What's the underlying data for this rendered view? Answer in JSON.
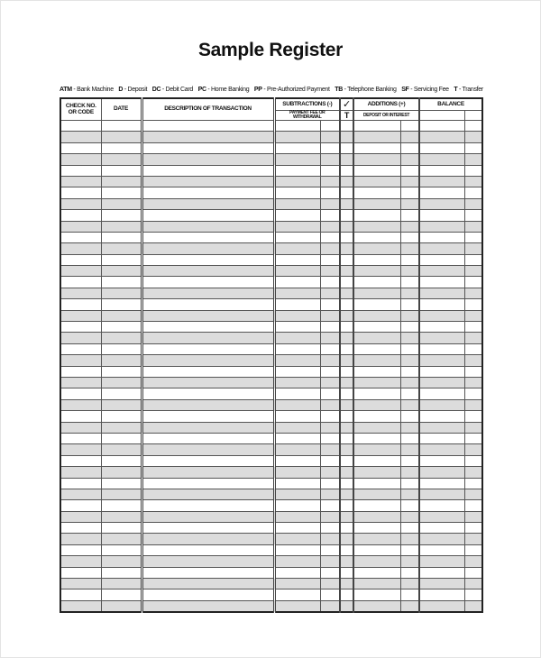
{
  "title": "Sample Register",
  "legend": [
    {
      "code": "ATM",
      "meaning": "Bank Machine"
    },
    {
      "code": "D",
      "meaning": "Deposit"
    },
    {
      "code": "DC",
      "meaning": "Debit Card"
    },
    {
      "code": "PC",
      "meaning": "Home Banking"
    },
    {
      "code": "PP",
      "meaning": "Pre-Authorized Payment"
    },
    {
      "code": "TB",
      "meaning": "Telephone Banking"
    },
    {
      "code": "SF",
      "meaning": "Servicing Fee"
    },
    {
      "code": "T",
      "meaning": "Transfer"
    }
  ],
  "table": {
    "headers": {
      "check_no": "CHECK NO. OR CODE",
      "date": "DATE",
      "description": "DESCRIPTION OF TRANSACTION",
      "subtractions": "SUBTRACTIONS (-)",
      "subtractions_sub": "PAYMENT FEE OR WITHDRAWAL",
      "check_mark": "✓",
      "check_t": "T",
      "additions": "ADDITIONS (+)",
      "additions_sub": "DEPOSIT OR INTEREST",
      "balance": "BALANCE"
    },
    "row_count": 44,
    "row_colors": [
      "#ffffff",
      "#dcdcdc"
    ]
  }
}
